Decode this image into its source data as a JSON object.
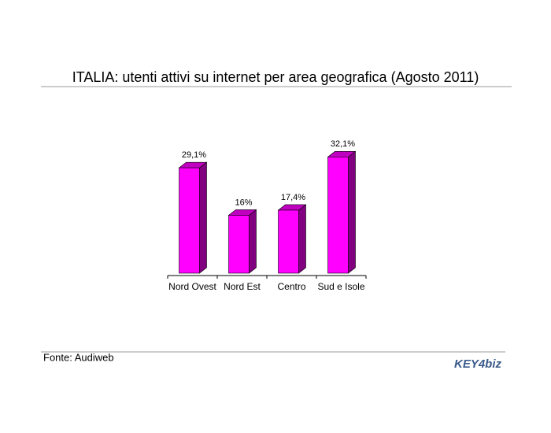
{
  "chart_data": {
    "type": "bar3d",
    "title": "ITALIA: utenti attivi su internet per area geografica (Agosto 2011)",
    "categories": [
      "Nord Ovest",
      "Nord Est",
      "Centro",
      "Sud e Isole"
    ],
    "values": [
      29.1,
      16,
      17.4,
      32.1
    ],
    "value_labels": [
      "29,1%",
      "16%",
      "17,4%",
      "32,1%"
    ],
    "color": "#ff00ff",
    "source": "Fonte: Audiweb",
    "logo": "KEY4biz"
  }
}
